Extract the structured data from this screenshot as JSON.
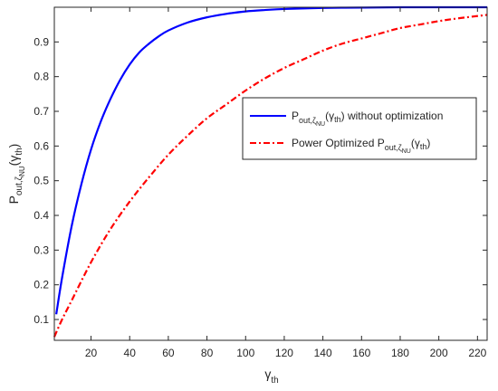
{
  "chart_data": {
    "type": "line",
    "xlabel": {
      "main": "γ",
      "sub": "th"
    },
    "ylabel": {
      "main": "P",
      "sub1": "out,ζ",
      "sub2": "NU",
      "paren_main": "γ",
      "paren_sub": "th"
    },
    "xlim": [
      1,
      225
    ],
    "ylim": [
      0.04,
      1.0
    ],
    "xticks": [
      20,
      40,
      60,
      80,
      100,
      120,
      140,
      160,
      180,
      200,
      220
    ],
    "yticks": [
      0.1,
      0.2,
      0.3,
      0.4,
      0.5,
      0.6,
      0.7,
      0.8,
      0.9
    ],
    "legend_position": "center-right",
    "series": [
      {
        "legend": {
          "prefix": "",
          "P": "P",
          "sub1": "out,ζ",
          "sub2": "NU",
          "gamma": "γ",
          "gsub": "th",
          "suffix": " without optimization"
        },
        "color": "#0000ff",
        "line_style": "solid",
        "x": [
          2,
          5,
          10,
          15,
          20,
          25,
          30,
          35,
          40,
          45,
          50,
          55,
          60,
          70,
          80,
          90,
          100,
          110,
          120,
          140,
          160,
          180,
          200,
          225
        ],
        "y": [
          0.115,
          0.22,
          0.37,
          0.49,
          0.59,
          0.67,
          0.735,
          0.79,
          0.835,
          0.87,
          0.895,
          0.916,
          0.933,
          0.956,
          0.971,
          0.981,
          0.988,
          0.992,
          0.995,
          0.998,
          0.999,
          1.0,
          1.0,
          1.0
        ]
      },
      {
        "legend": {
          "prefix": "Power Optimized ",
          "P": "P",
          "sub1": "out,ζ",
          "sub2": "NU",
          "gamma": "γ",
          "gsub": "th",
          "suffix": ""
        },
        "color": "#ff0000",
        "line_style": "dashdot",
        "x": [
          1,
          5,
          10,
          20,
          30,
          40,
          50,
          60,
          70,
          80,
          90,
          100,
          110,
          120,
          130,
          140,
          150,
          160,
          170,
          180,
          190,
          200,
          210,
          225
        ],
        "y": [
          0.05,
          0.1,
          0.155,
          0.265,
          0.36,
          0.44,
          0.51,
          0.575,
          0.63,
          0.68,
          0.72,
          0.76,
          0.795,
          0.825,
          0.85,
          0.875,
          0.895,
          0.91,
          0.925,
          0.94,
          0.95,
          0.96,
          0.968,
          0.978
        ]
      }
    ]
  }
}
